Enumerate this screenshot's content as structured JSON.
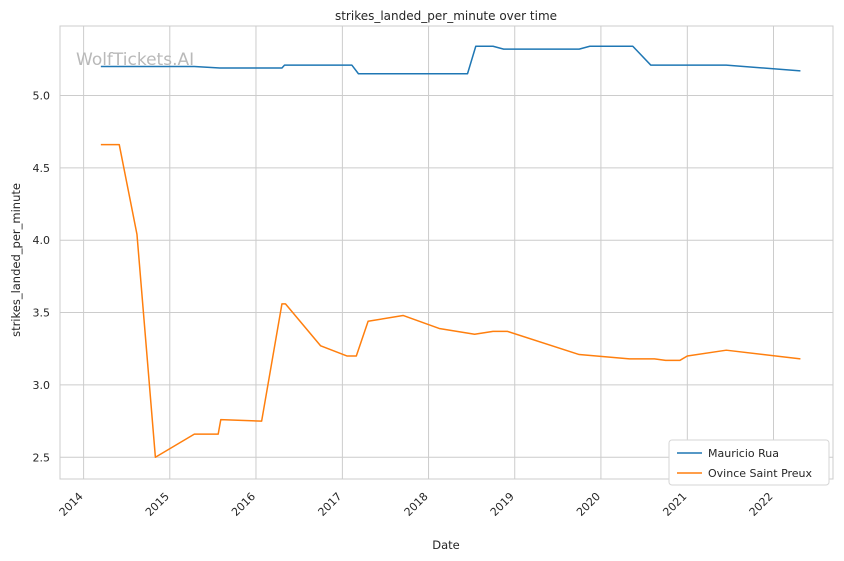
{
  "chart_data": {
    "type": "line",
    "title": "strikes_landed_per_minute over time",
    "xlabel": "Date",
    "ylabel": "strikes_landed_per_minute",
    "watermark": "WolfTickets.AI",
    "x_ticks": [
      "2014",
      "2015",
      "2016",
      "2017",
      "2018",
      "2019",
      "2020",
      "2021",
      "2022"
    ],
    "y_ticks": [
      "2.5",
      "3.0",
      "3.5",
      "4.0",
      "4.5",
      "5.0"
    ],
    "xlim": [
      "2013-09-23",
      "2022-09-10"
    ],
    "ylim": [
      2.35,
      5.48
    ],
    "grid": true,
    "legend_position": "lower-right",
    "series": [
      {
        "name": "Mauricio Rua",
        "color": "#1f77b4",
        "points": [
          [
            "2014-03-15",
            5.2
          ],
          [
            "2015-04-15",
            5.2
          ],
          [
            "2015-08-01",
            5.19
          ],
          [
            "2016-03-01",
            5.19
          ],
          [
            "2016-04-20",
            5.19
          ],
          [
            "2016-05-01",
            5.21
          ],
          [
            "2017-02-10",
            5.21
          ],
          [
            "2017-03-10",
            5.15
          ],
          [
            "2018-06-15",
            5.15
          ],
          [
            "2018-07-20",
            5.34
          ],
          [
            "2018-10-01",
            5.34
          ],
          [
            "2018-11-15",
            5.32
          ],
          [
            "2019-10-01",
            5.32
          ],
          [
            "2019-11-15",
            5.34
          ],
          [
            "2020-05-15",
            5.34
          ],
          [
            "2020-07-30",
            5.21
          ],
          [
            "2021-06-15",
            5.21
          ],
          [
            "2022-04-25",
            5.17
          ]
        ]
      },
      {
        "name": "Ovince Saint Preux",
        "color": "#ff7f0e",
        "points": [
          [
            "2014-03-15",
            4.66
          ],
          [
            "2014-06-01",
            4.66
          ],
          [
            "2014-08-15",
            4.04
          ],
          [
            "2014-11-01",
            2.5
          ],
          [
            "2015-04-15",
            2.66
          ],
          [
            "2015-07-25",
            2.66
          ],
          [
            "2015-08-05",
            2.76
          ],
          [
            "2016-01-25",
            2.75
          ],
          [
            "2016-04-20",
            3.56
          ],
          [
            "2016-05-05",
            3.56
          ],
          [
            "2016-10-01",
            3.27
          ],
          [
            "2017-01-20",
            3.2
          ],
          [
            "2017-03-01",
            3.2
          ],
          [
            "2017-04-20",
            3.44
          ],
          [
            "2017-09-15",
            3.48
          ],
          [
            "2018-02-15",
            3.39
          ],
          [
            "2018-07-15",
            3.35
          ],
          [
            "2018-10-01",
            3.37
          ],
          [
            "2018-12-01",
            3.37
          ],
          [
            "2019-10-01",
            3.21
          ],
          [
            "2020-05-01",
            3.18
          ],
          [
            "2020-08-15",
            3.18
          ],
          [
            "2020-10-01",
            3.17
          ],
          [
            "2020-12-01",
            3.17
          ],
          [
            "2021-01-01",
            3.2
          ],
          [
            "2021-06-15",
            3.24
          ],
          [
            "2022-04-25",
            3.18
          ]
        ]
      }
    ]
  }
}
